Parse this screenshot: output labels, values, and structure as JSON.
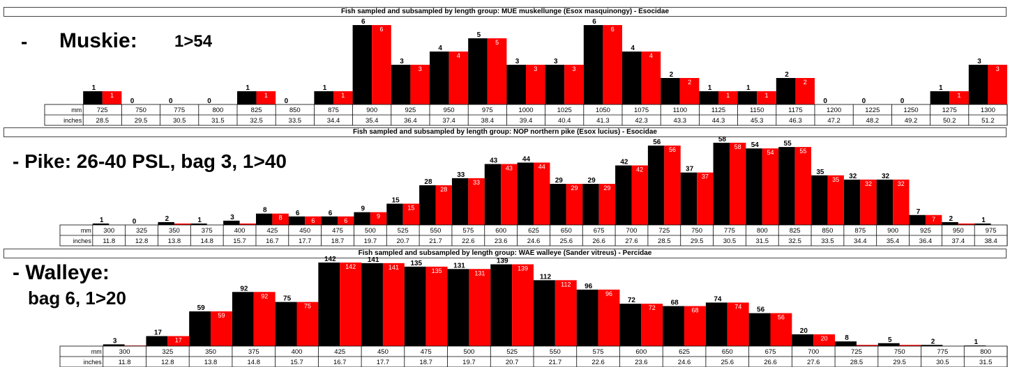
{
  "colors": {
    "sampled": "#000000",
    "subsampled": "#ff0000",
    "background": "#ffffff"
  },
  "row_labels": {
    "mm": "mm",
    "inches": "inches"
  },
  "panels": [
    {
      "title": "Fish sampled and subsampled by length group: MUE muskellunge (Esox masquinongy) - Esocidae",
      "note_dash": "-",
      "note_name": "Muskie:",
      "note_rule": "1>54"
    },
    {
      "title": "Fish sampled and subsampled by length group: NOP northern pike (Esox lucius) - Esocidae",
      "note_line1": "- Pike: 26-40 PSL, bag 3, 1>40"
    },
    {
      "title": "Fish sampled and subsampled by length group: WAE walleye (Sander vitreus) - Percidae",
      "note_line1": "- Walleye:",
      "note_line2": "bag 6, 1>20"
    }
  ],
  "chart_data": [
    {
      "type": "bar",
      "title": "Fish sampled and subsampled by length group: MUE muskellunge (Esox masquinongy) - Esocidae",
      "categories": [
        "725",
        "750",
        "775",
        "800",
        "825",
        "850",
        "875",
        "900",
        "925",
        "950",
        "975",
        "1000",
        "1025",
        "1050",
        "1075",
        "1100",
        "1125",
        "1150",
        "1175",
        "1200",
        "1225",
        "1250",
        "1275",
        "1300"
      ],
      "inches": [
        "28.5",
        "29.5",
        "30.5",
        "31.5",
        "32.5",
        "33.5",
        "34.4",
        "35.4",
        "36.4",
        "37.4",
        "38.4",
        "39.4",
        "40.4",
        "41.3",
        "42.3",
        "43.3",
        "44.3",
        "45.3",
        "46.3",
        "47.2",
        "48.2",
        "49.2",
        "50.2",
        "51.2"
      ],
      "series": [
        {
          "values": [
            1,
            0,
            0,
            0,
            1,
            0,
            1,
            6,
            3,
            4,
            5,
            3,
            3,
            6,
            4,
            2,
            1,
            1,
            2,
            0,
            0,
            0,
            1,
            3
          ]
        },
        {
          "values": [
            1,
            0,
            0,
            0,
            1,
            0,
            1,
            6,
            3,
            4,
            5,
            3,
            3,
            6,
            4,
            2,
            1,
            1,
            2,
            0,
            0,
            0,
            1,
            3
          ]
        }
      ],
      "ylim": [
        0,
        6
      ]
    },
    {
      "type": "bar",
      "title": "Fish sampled and subsampled by length group: NOP northern pike (Esox lucius) - Esocidae",
      "categories": [
        "300",
        "325",
        "350",
        "375",
        "400",
        "425",
        "450",
        "475",
        "500",
        "525",
        "550",
        "575",
        "600",
        "625",
        "650",
        "675",
        "700",
        "725",
        "750",
        "775",
        "800",
        "825",
        "850",
        "875",
        "900",
        "925",
        "950",
        "975"
      ],
      "inches": [
        "11.8",
        "12.8",
        "13.8",
        "14.8",
        "15.7",
        "16.7",
        "17.7",
        "18.7",
        "19.7",
        "20.7",
        "21.7",
        "22.6",
        "23.6",
        "24.6",
        "25.6",
        "26.6",
        "27.6",
        "28.5",
        "29.5",
        "30.5",
        "31.5",
        "32.5",
        "33.5",
        "34.4",
        "35.4",
        "36.4",
        "37.4",
        "38.4"
      ],
      "series": [
        {
          "values": [
            1,
            0,
            2,
            1,
            3,
            8,
            6,
            6,
            9,
            15,
            28,
            33,
            43,
            44,
            29,
            29,
            42,
            56,
            37,
            58,
            54,
            55,
            35,
            32,
            32,
            7,
            2,
            1
          ]
        },
        {
          "values": [
            0,
            0,
            1,
            0,
            1,
            8,
            6,
            6,
            9,
            15,
            28,
            33,
            43,
            44,
            29,
            29,
            42,
            56,
            37,
            58,
            54,
            55,
            35,
            32,
            32,
            7,
            1,
            0
          ]
        }
      ],
      "ylim": [
        0,
        58
      ]
    },
    {
      "type": "bar",
      "title": "Fish sampled and subsampled by length group: WAE walleye (Sander vitreus) - Percidae",
      "categories": [
        "300",
        "325",
        "350",
        "375",
        "400",
        "425",
        "450",
        "475",
        "500",
        "525",
        "550",
        "575",
        "600",
        "625",
        "650",
        "675",
        "700",
        "725",
        "750",
        "775",
        "800"
      ],
      "inches": [
        "11.8",
        "12.8",
        "13.8",
        "14.8",
        "15.7",
        "16.7",
        "17.7",
        "18.7",
        "19.7",
        "20.7",
        "21.7",
        "22.6",
        "23.6",
        "24.6",
        "25.6",
        "26.6",
        "27.6",
        "28.5",
        "29.5",
        "30.5",
        "31.5"
      ],
      "series": [
        {
          "values": [
            3,
            17,
            59,
            92,
            75,
            142,
            141,
            135,
            131,
            139,
            112,
            96,
            72,
            68,
            74,
            56,
            20,
            8,
            5,
            2,
            1
          ]
        },
        {
          "values": [
            1,
            17,
            59,
            92,
            75,
            142,
            141,
            135,
            131,
            139,
            112,
            96,
            72,
            68,
            74,
            56,
            20,
            2,
            2,
            0,
            0
          ]
        }
      ],
      "ylim": [
        0,
        142
      ]
    }
  ]
}
